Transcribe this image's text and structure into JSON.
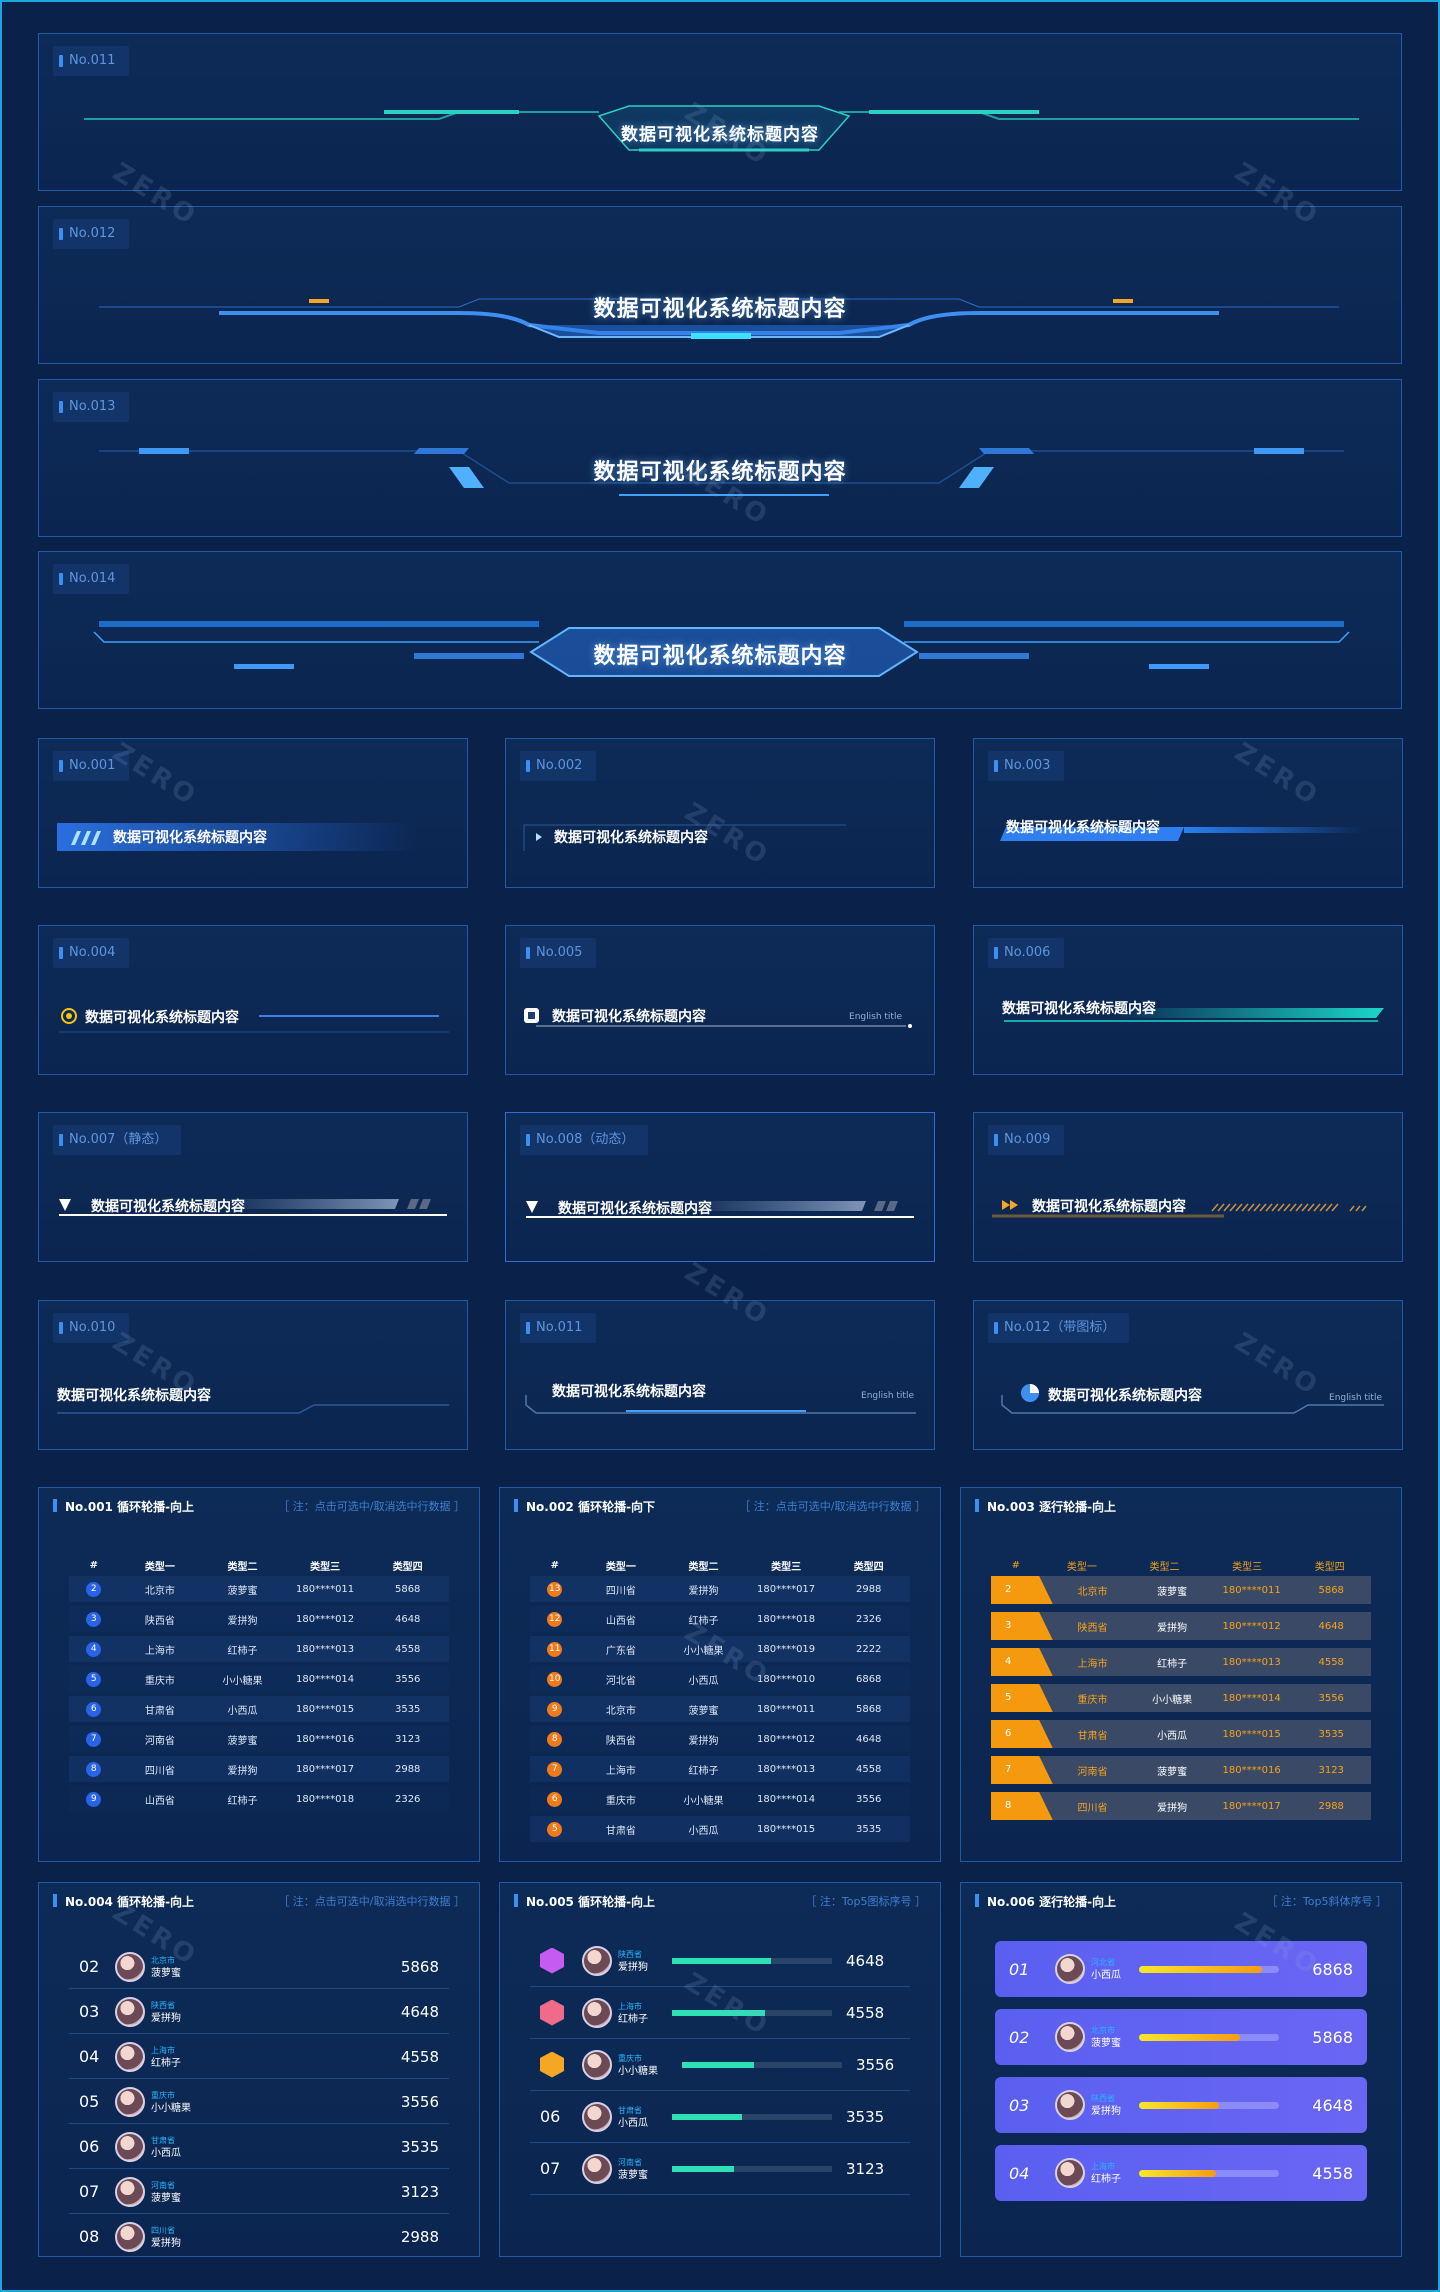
{
  "tags": {
    "w1": "No.011",
    "w2": "No.012",
    "w3": "No.013",
    "w4": "No.014",
    "s1": "No.001",
    "s2": "No.002",
    "s3": "No.003",
    "s4": "No.004",
    "s5": "No.005",
    "s6": "No.006",
    "s7": "No.007（静态）",
    "s8": "No.008（动态）",
    "s9": "No.009",
    "s10": "No.010",
    "s11": "No.011",
    "s12": "No.012（带图标）"
  },
  "title": "数据可视化系统标题内容",
  "english": "English title",
  "watermark": "ZERO",
  "t1": {
    "title": "No.001 循环轮播-向上",
    "note": "［ 注：点击可选中/取消选中行数据 ］",
    "headers": [
      "#",
      "类型一",
      "类型二",
      "类型三",
      "类型四"
    ],
    "rows": [
      [
        "2",
        "北京市",
        "菠萝蜜",
        "180****011",
        "5868"
      ],
      [
        "3",
        "陕西省",
        "爱拼狗",
        "180****012",
        "4648"
      ],
      [
        "4",
        "上海市",
        "红柿子",
        "180****013",
        "4558"
      ],
      [
        "5",
        "重庆市",
        "小小糖果",
        "180****014",
        "3556"
      ],
      [
        "6",
        "甘肃省",
        "小西瓜",
        "180****015",
        "3535"
      ],
      [
        "7",
        "河南省",
        "菠萝蜜",
        "180****016",
        "3123"
      ],
      [
        "8",
        "四川省",
        "爱拼狗",
        "180****017",
        "2988"
      ],
      [
        "9",
        "山西省",
        "红柿子",
        "180****018",
        "2326"
      ]
    ]
  },
  "t2": {
    "title": "No.002 循环轮播-向下",
    "note": "［ 注：点击可选中/取消选中行数据 ］",
    "headers": [
      "#",
      "类型一",
      "类型二",
      "类型三",
      "类型四"
    ],
    "rows": [
      [
        "13",
        "四川省",
        "爱拼狗",
        "180****017",
        "2988"
      ],
      [
        "12",
        "山西省",
        "红柿子",
        "180****018",
        "2326"
      ],
      [
        "11",
        "广东省",
        "小小糖果",
        "180****019",
        "2222"
      ],
      [
        "10",
        "河北省",
        "小西瓜",
        "180****010",
        "6868"
      ],
      [
        "9",
        "北京市",
        "菠萝蜜",
        "180****011",
        "5868"
      ],
      [
        "8",
        "陕西省",
        "爱拼狗",
        "180****012",
        "4648"
      ],
      [
        "7",
        "上海市",
        "红柿子",
        "180****013",
        "4558"
      ],
      [
        "6",
        "重庆市",
        "小小糖果",
        "180****014",
        "3556"
      ],
      [
        "5",
        "甘肃省",
        "小西瓜",
        "180****015",
        "3535"
      ]
    ]
  },
  "t3": {
    "title": "No.003 逐行轮播-向上",
    "headers": [
      "#",
      "类型一",
      "类型二",
      "类型三",
      "类型四"
    ],
    "rows": [
      [
        "2",
        "北京市",
        "菠萝蜜",
        "180****011",
        "5868"
      ],
      [
        "3",
        "陕西省",
        "爱拼狗",
        "180****012",
        "4648"
      ],
      [
        "4",
        "上海市",
        "红柿子",
        "180****013",
        "4558"
      ],
      [
        "5",
        "重庆市",
        "小小糖果",
        "180****014",
        "3556"
      ],
      [
        "6",
        "甘肃省",
        "小西瓜",
        "180****015",
        "3535"
      ],
      [
        "7",
        "河南省",
        "菠萝蜜",
        "180****016",
        "3123"
      ],
      [
        "8",
        "四川省",
        "爱拼狗",
        "180****017",
        "2988"
      ]
    ]
  },
  "t4": {
    "title": "No.004 循环轮播-向上",
    "note": "［ 注：点击可选中/取消选中行数据 ］",
    "rows": [
      [
        "02",
        "北京市",
        "菠萝蜜",
        "5868"
      ],
      [
        "03",
        "陕西省",
        "爱拼狗",
        "4648"
      ],
      [
        "04",
        "上海市",
        "红柿子",
        "4558"
      ],
      [
        "05",
        "重庆市",
        "小小糖果",
        "3556"
      ],
      [
        "06",
        "甘肃省",
        "小西瓜",
        "3535"
      ],
      [
        "07",
        "河南省",
        "菠萝蜜",
        "3123"
      ],
      [
        "08",
        "四川省",
        "爱拼狗",
        "2988"
      ]
    ]
  },
  "t5": {
    "title": "No.005 循环轮播-向上",
    "note": "［ 注：Top5图标序号 ］",
    "rows": [
      [
        "",
        "陕西省",
        "爱拼狗",
        "4648",
        0.62
      ],
      [
        "",
        "上海市",
        "红柿子",
        "4558",
        0.58
      ],
      [
        "",
        "重庆市",
        "小小糖果",
        "3556",
        0.45
      ],
      [
        "06",
        "甘肃省",
        "小西瓜",
        "3535",
        0.44
      ],
      [
        "07",
        "河南省",
        "菠萝蜜",
        "3123",
        0.39
      ]
    ],
    "colors": [
      "#c55bf0",
      "#f06a8a",
      "#f5a623"
    ]
  },
  "t6": {
    "title": "No.006 逐行轮播-向上",
    "note": "［ 注：Top5斜体序号 ］",
    "rows": [
      [
        "01",
        "河北省",
        "小西瓜",
        "6868",
        0.88
      ],
      [
        "02",
        "北京市",
        "菠萝蜜",
        "5868",
        0.72
      ],
      [
        "03",
        "陕西省",
        "爱拼狗",
        "4648",
        0.57
      ],
      [
        "04",
        "上海市",
        "红柿子",
        "4558",
        0.55
      ]
    ]
  }
}
